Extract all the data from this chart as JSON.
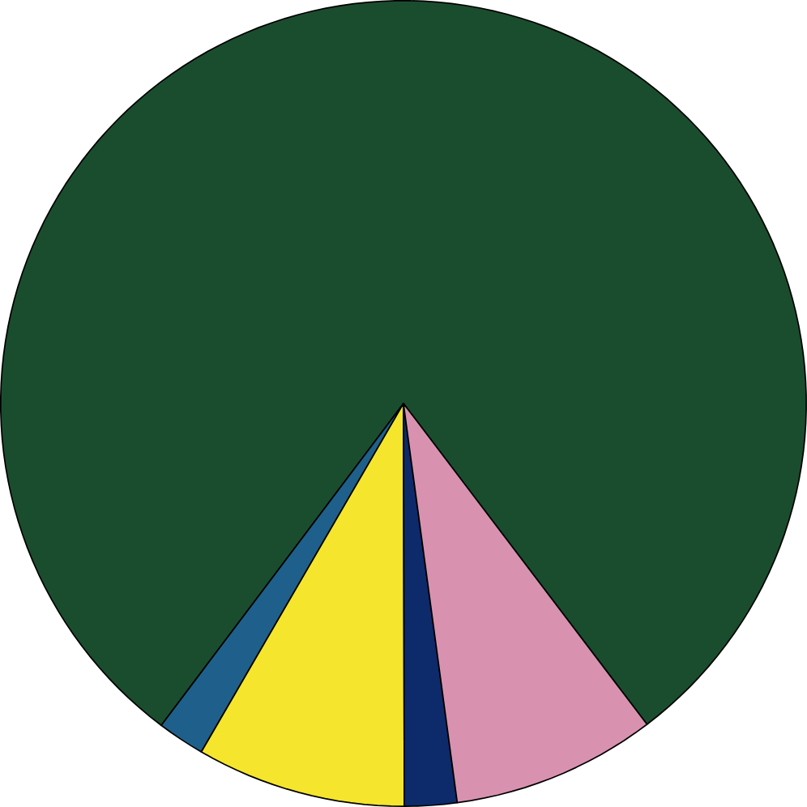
{
  "chart_data": {
    "type": "pie",
    "categories": [
      null,
      null,
      null,
      null,
      null
    ],
    "values": [
      79.4,
      1.9,
      8.4,
      2.1,
      8.2
    ],
    "colors": [
      "#1a4d2e",
      "#1f5f8b",
      "#f5e52d",
      "#0d2a6b",
      "#d892b0"
    ]
  }
}
